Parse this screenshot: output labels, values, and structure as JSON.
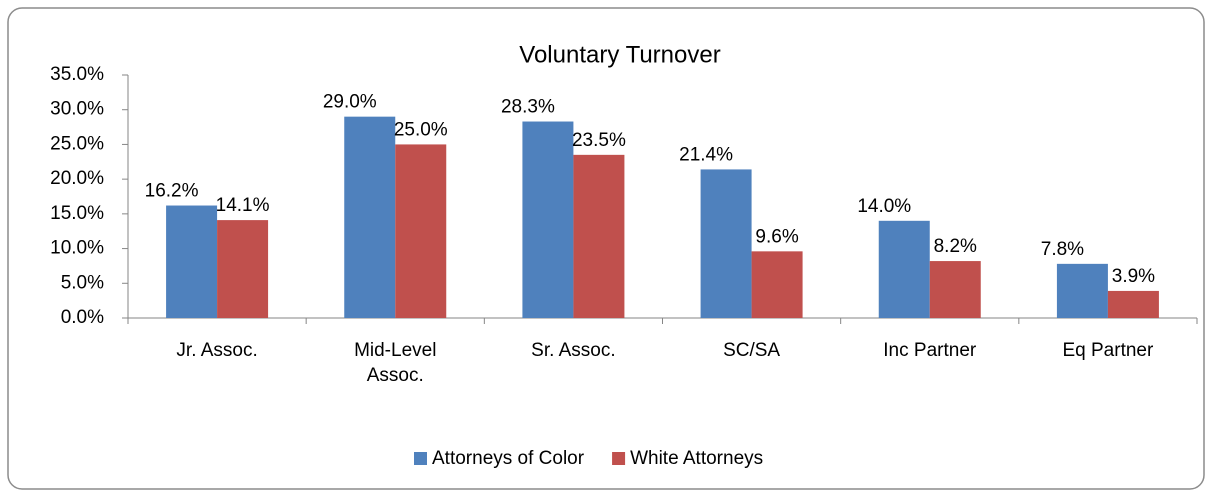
{
  "chart_data": {
    "type": "bar",
    "title": "Voluntary Turnover",
    "categories": [
      "Jr. Assoc.",
      "Mid-Level Assoc.",
      "Sr. Assoc.",
      "SC/SA",
      "Inc Partner",
      "Eq Partner"
    ],
    "series": [
      {
        "name": "Attorneys of Color",
        "color": "#4f81bd",
        "values": [
          16.2,
          29.0,
          28.3,
          21.4,
          14.0,
          7.8
        ],
        "value_labels": [
          "16.2%",
          "29.0%",
          "28.3%",
          "21.4%",
          "14.0%",
          "7.8%"
        ]
      },
      {
        "name": "White Attorneys",
        "color": "#c0504d",
        "values": [
          14.1,
          25.0,
          23.5,
          9.6,
          8.2,
          3.9
        ],
        "value_labels": [
          "14.1%",
          "25.0%",
          "23.5%",
          "9.6%",
          "8.2%",
          "3.9%"
        ]
      }
    ],
    "ylim": [
      0,
      35
    ],
    "yticks": [
      {
        "value": 0,
        "label": "0.0%"
      },
      {
        "value": 5,
        "label": "5.0%"
      },
      {
        "value": 10,
        "label": "10.0%"
      },
      {
        "value": 15,
        "label": "15.0%"
      },
      {
        "value": 20,
        "label": "20.0%"
      },
      {
        "value": 25,
        "label": "25.0%"
      },
      {
        "value": 30,
        "label": "30.0%"
      },
      {
        "value": 35,
        "label": "35.0%"
      }
    ],
    "legend": "bottom"
  }
}
